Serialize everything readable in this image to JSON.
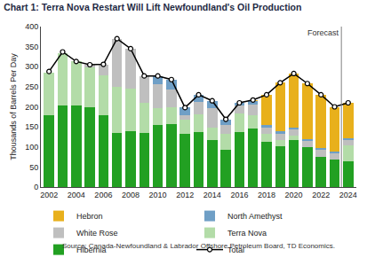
{
  "chart_data": {
    "type": "bar",
    "title": "Chart 1: Terra Nova Restart Will Lift Newfoundland's Oil Production",
    "y_label": "Thousands of Barrels Per Day",
    "source": "Source: Canada-Newfoundland & Labrador Offshore Petroleum Board, TD Economics.",
    "stacked": true,
    "grid": false,
    "legend": "bottom",
    "categories": [
      "2002",
      null,
      "2004",
      null,
      "2006",
      null,
      "2008",
      null,
      "2010",
      null,
      "2012",
      null,
      "2014",
      null,
      "2016",
      null,
      "2018",
      null,
      "2020",
      null,
      "2022",
      null,
      "2024"
    ],
    "ylim": [
      0,
      400
    ],
    "yticks": [
      0,
      50,
      100,
      150,
      200,
      250,
      300,
      350,
      400
    ],
    "annotations": [
      {
        "text": "Forecast",
        "x": "2024"
      }
    ],
    "series": [
      {
        "name": "Hebron",
        "type": "bar",
        "color": "#e8b01c",
        "values": [
          0,
          0,
          0,
          0,
          0,
          0,
          0,
          0,
          0,
          0,
          0,
          0,
          0,
          0,
          0,
          2,
          75,
          120,
          135,
          138,
          132,
          112,
          89
        ]
      },
      {
        "name": "North Amethyst",
        "type": "bar",
        "color": "#6f9fc6",
        "values": [
          0,
          0,
          0,
          0,
          0,
          0,
          0,
          0,
          20,
          25,
          18,
          18,
          18,
          15,
          7,
          10,
          8,
          8,
          5,
          5,
          5,
          5,
          3
        ]
      },
      {
        "name": "White Rose",
        "type": "bar",
        "color": "#bfbfbf",
        "values": [
          0,
          0,
          0,
          7,
          28,
          120,
          100,
          67,
          60,
          45,
          12,
          30,
          50,
          22,
          20,
          25,
          15,
          15,
          15,
          15,
          18,
          15,
          15
        ]
      },
      {
        "name": "Terra Nova",
        "type": "bar",
        "color": "#b3dca8",
        "values": [
          105,
          130,
          110,
          100,
          100,
          115,
          105,
          75,
          42,
          40,
          35,
          45,
          30,
          40,
          45,
          35,
          20,
          15,
          10,
          0,
          0,
          0,
          38
        ]
      },
      {
        "name": "Hibernia",
        "type": "bar",
        "color": "#22a022",
        "values": [
          180,
          203,
          203,
          198,
          178,
          135,
          140,
          135,
          155,
          158,
          133,
          137,
          117,
          92,
          138,
          145,
          112,
          102,
          118,
          100,
          75,
          68,
          65
        ]
      },
      {
        "name": "Total",
        "type": "line",
        "color": "#000000",
        "marker": "circle",
        "line_style": "solid",
        "values": [
          288,
          337,
          313,
          305,
          306,
          370,
          345,
          277,
          277,
          268,
          198,
          230,
          215,
          169,
          210,
          217,
          230,
          260,
          283,
          258,
          230,
          200,
          210
        ]
      }
    ]
  }
}
